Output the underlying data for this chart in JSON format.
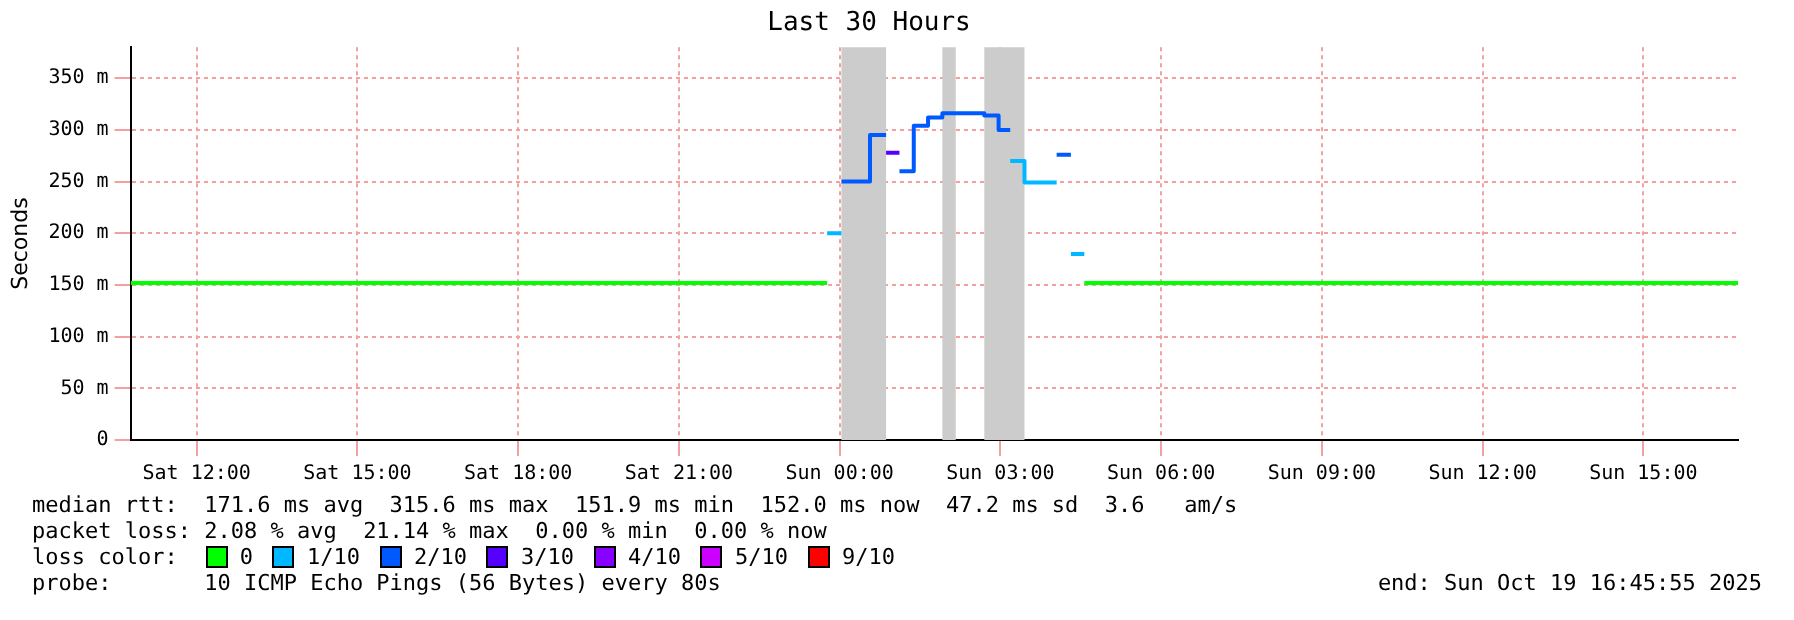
{
  "chart_data": {
    "type": "step",
    "title": "Last 30 Hours",
    "ylabel": "Seconds",
    "legend_title": "loss color:",
    "legend": "bottom",
    "grid": true,
    "xlim": [
      "2025-10-18T10:46",
      "2025-10-19T16:46"
    ],
    "xticks": [
      {
        "value": "2025-10-18T12:00",
        "label": "Sat 12:00"
      },
      {
        "value": "2025-10-18T15:00",
        "label": "Sat 15:00"
      },
      {
        "value": "2025-10-18T18:00",
        "label": "Sat 18:00"
      },
      {
        "value": "2025-10-18T21:00",
        "label": "Sat 21:00"
      },
      {
        "value": "2025-10-19T00:00",
        "label": "Sun 00:00"
      },
      {
        "value": "2025-10-19T03:00",
        "label": "Sun 03:00"
      },
      {
        "value": "2025-10-19T06:00",
        "label": "Sun 06:00"
      },
      {
        "value": "2025-10-19T09:00",
        "label": "Sun 09:00"
      },
      {
        "value": "2025-10-19T12:00",
        "label": "Sun 12:00"
      },
      {
        "value": "2025-10-19T15:00",
        "label": "Sun 15:00"
      }
    ],
    "ylim": [
      0,
      380
    ],
    "yticks": [
      0,
      {
        "value": 50,
        "label": "50 m"
      },
      {
        "value": 100,
        "label": "100 m"
      },
      {
        "value": 150,
        "label": "150 m"
      },
      {
        "value": 200,
        "label": "200 m"
      },
      {
        "value": 250,
        "label": "250 m"
      },
      {
        "value": 300,
        "label": "300 m"
      },
      {
        "value": 350,
        "label": "350 m"
      }
    ],
    "bands": [
      {
        "axis": "x",
        "from": "2025-10-19T00:02",
        "to": "2025-10-19T00:52",
        "color": "#cccccc"
      },
      {
        "axis": "x",
        "from": "2025-10-19T01:55",
        "to": "2025-10-19T02:10",
        "color": "#cccccc"
      },
      {
        "axis": "x",
        "from": "2025-10-19T02:42",
        "to": "2025-10-19T03:27",
        "color": "#cccccc"
      }
    ],
    "series": [
      {
        "name": "0",
        "color": "#00ff00",
        "x": [
          "2025-10-18T10:46",
          "2025-10-18T23:46",
          "2025-10-19T00:00",
          "2025-10-19T04:34",
          "2025-10-19T16:46"
        ],
        "values": [
          152,
          152,
          null,
          152,
          152
        ]
      },
      {
        "name": "1/10",
        "color": "#00b8ff",
        "x": [
          "2025-10-18T23:46",
          "2025-10-19T00:02",
          "2025-10-19T01:00",
          "2025-10-19T03:11",
          "2025-10-19T03:27",
          "2025-10-19T04:03",
          "2025-10-19T04:10",
          "2025-10-19T04:19",
          "2025-10-19T04:34"
        ],
        "values": [
          200,
          200,
          null,
          270,
          249,
          249,
          null,
          180,
          180
        ]
      },
      {
        "name": "2/10",
        "color": "#0059ff",
        "x": [
          "2025-10-19T00:02",
          "2025-10-19T00:34",
          "2025-10-19T00:52",
          "2025-10-19T01:00",
          "2025-10-19T01:07",
          "2025-10-19T01:23",
          "2025-10-19T01:39",
          "2025-10-19T01:55",
          "2025-10-19T02:42",
          "2025-10-19T02:58",
          "2025-10-19T03:11",
          "2025-10-19T03:40",
          "2025-10-19T04:03",
          "2025-10-19T04:19"
        ],
        "values": [
          250,
          295,
          295,
          null,
          260,
          304,
          312,
          316,
          314,
          300,
          300,
          null,
          276,
          276
        ]
      },
      {
        "name": "3/10",
        "color": "#5500ff",
        "x": [
          "2025-10-19T00:52",
          "2025-10-19T01:07"
        ],
        "values": [
          278,
          278
        ]
      },
      {
        "name": "4/10",
        "color": "#8800ff"
      },
      {
        "name": "5/10",
        "color": "#cc00ff"
      },
      {
        "name": "9/10",
        "color": "#ff0000"
      }
    ],
    "annotations": [
      "median rtt:  171.6 ms avg  315.6 ms max  151.9 ms min  152.0 ms now  47.2 ms sd  3.6   am/s",
      "packet loss: 2.08 % avg  21.14 % max  0.00 % min  0.00 % now",
      "probe:       10 ICMP Echo Pings (56 Bytes) every 80s",
      "end: Sun Oct 19 16:45:55 2025"
    ]
  }
}
